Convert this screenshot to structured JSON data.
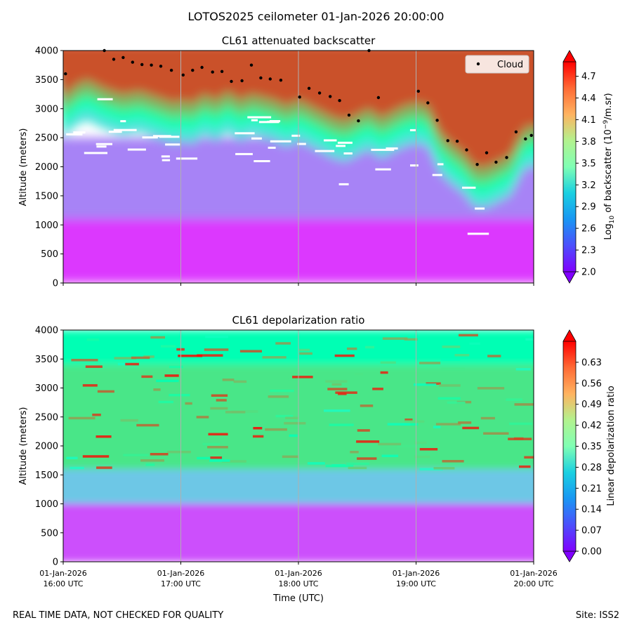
{
  "figure": {
    "suptitle": "LOTOS2025 ceilometer 01-Jan-2026 20:00:00",
    "footer_left": "REAL TIME DATA, NOT CHECKED FOR QUALITY",
    "footer_right": "Site: ISS2",
    "xlabel": "Time (UTC)"
  },
  "chart_data": [
    {
      "type": "heatmap",
      "title": "CL61 attenuated backscatter",
      "ylabel": "Altitude (meters)",
      "xlabel": "Time (UTC)",
      "xlim_hours": [
        16.0,
        20.0
      ],
      "xticks": [
        {
          "hour": 16,
          "date": "01-Jan-2026",
          "time": "16:00 UTC"
        },
        {
          "hour": 17,
          "date": "01-Jan-2026",
          "time": "17:00 UTC"
        },
        {
          "hour": 18,
          "date": "01-Jan-2026",
          "time": "18:00 UTC"
        },
        {
          "hour": 19,
          "date": "01-Jan-2026",
          "time": "19:00 UTC"
        },
        {
          "hour": 20,
          "date": "01-Jan-2026",
          "time": "20:00 UTC"
        }
      ],
      "ylim": [
        0,
        4000
      ],
      "yticks": [
        0,
        500,
        1000,
        1500,
        2000,
        2500,
        3000,
        3500,
        4000
      ],
      "colorbar": {
        "label_prefix": "Log",
        "label_sub": "10",
        "label_mid": " of backscatter (10",
        "label_sup": "−9",
        "label_suffix": "/m.sr)",
        "range": [
          2.0,
          4.9
        ],
        "ticks": [
          "2.0",
          "2.3",
          "2.6",
          "2.9",
          "3.2",
          "3.5",
          "3.8",
          "4.1",
          "4.4",
          "4.7"
        ],
        "colormap": "rainbow"
      },
      "legend": {
        "label": "Cloud",
        "placement": "top-right"
      },
      "cloud_base": {
        "series_name": "Cloud",
        "time_hours": [
          16.02,
          16.35,
          16.43,
          16.51,
          16.59,
          16.67,
          16.75,
          16.83,
          16.92,
          17.02,
          17.1,
          17.18,
          17.27,
          17.35,
          17.43,
          17.52,
          17.6,
          17.68,
          17.76,
          17.85,
          18.01,
          18.09,
          18.18,
          18.27,
          18.35,
          18.43,
          18.51,
          18.6,
          18.68,
          19.02,
          19.1,
          19.18,
          19.27,
          19.35,
          19.43,
          19.52,
          19.6,
          19.68,
          19.77,
          19.85,
          19.93,
          19.98
        ],
        "altitude_m": [
          3600,
          4000,
          3850,
          3880,
          3800,
          3760,
          3750,
          3730,
          3660,
          3580,
          3660,
          3710,
          3630,
          3640,
          3470,
          3480,
          3750,
          3530,
          3510,
          3490,
          3200,
          3350,
          3270,
          3210,
          3140,
          2890,
          2790,
          4000,
          3190,
          3300,
          3100,
          2800,
          2450,
          2440,
          2290,
          2040,
          2240,
          2080,
          2160,
          2600,
          2480,
          2540
        ]
      },
      "layers": [
        {
          "name": "surface-layer",
          "value": 2.2,
          "altitude_m": [
            0,
            1100
          ]
        },
        {
          "name": "boundary-layer",
          "value": 2.5,
          "altitude_m": [
            1100,
            2500
          ]
        },
        {
          "name": "cloud-layer",
          "value": 4.6,
          "top_altitude_m": 4000
        }
      ],
      "cloud_layer_bottom": {
        "time_hours": [
          16.0,
          16.1,
          16.2,
          16.35,
          16.5,
          16.65,
          16.8,
          16.95,
          17.0,
          17.1,
          17.2,
          17.3,
          17.4,
          17.5,
          17.6,
          17.7,
          17.8,
          17.9,
          18.0,
          18.1,
          18.2,
          18.3,
          18.4,
          18.5,
          18.6,
          18.7,
          18.8,
          18.9,
          19.0,
          19.1,
          19.2,
          19.3,
          19.4,
          19.5,
          19.6,
          19.7,
          19.8,
          19.9,
          19.95
        ],
        "altitude_m": [
          3000,
          3200,
          3300,
          3150,
          3050,
          3100,
          3000,
          2900,
          2950,
          2900,
          3050,
          2950,
          3100,
          2950,
          3050,
          3000,
          2950,
          2850,
          2950,
          2850,
          2750,
          2650,
          2600,
          2700,
          2800,
          2650,
          2750,
          2850,
          2900,
          2850,
          2400,
          2200,
          2050,
          1800,
          1800,
          1900,
          2000,
          2400,
          2500
        ]
      }
    },
    {
      "type": "heatmap",
      "title": "CL61 depolarization ratio",
      "ylabel": "Altitude (meters)",
      "xlabel": "Time (UTC)",
      "xlim_hours": [
        16.0,
        20.0
      ],
      "xticks": [
        {
          "hour": 16,
          "date": "01-Jan-2026",
          "time": "16:00 UTC"
        },
        {
          "hour": 17,
          "date": "01-Jan-2026",
          "time": "17:00 UTC"
        },
        {
          "hour": 18,
          "date": "01-Jan-2026",
          "time": "18:00 UTC"
        },
        {
          "hour": 19,
          "date": "01-Jan-2026",
          "time": "19:00 UTC"
        },
        {
          "hour": 20,
          "date": "01-Jan-2026",
          "time": "20:00 UTC"
        }
      ],
      "ylim": [
        0,
        4000
      ],
      "yticks": [
        0,
        500,
        1000,
        1500,
        2000,
        2500,
        3000,
        3500,
        4000
      ],
      "colorbar": {
        "label": "Linear depolarization ratio",
        "range": [
          0.0,
          0.7
        ],
        "ticks": [
          "0.00",
          "0.07",
          "0.14",
          "0.21",
          "0.28",
          "0.35",
          "0.42",
          "0.49",
          "0.56",
          "0.63"
        ],
        "colormap": "rainbow"
      },
      "layers": [
        {
          "name": "surface-layer",
          "value": 0.07,
          "altitude_m": [
            0,
            1000
          ]
        },
        {
          "name": "transition-layer",
          "value": 0.2,
          "altitude_m": [
            1000,
            1600
          ]
        },
        {
          "name": "aerosol-layer",
          "value": 0.45,
          "altitude_m": [
            1600,
            3400
          ]
        },
        {
          "name": "upper-layer",
          "value": 0.35,
          "altitude_m": [
            3400,
            4000
          ]
        }
      ]
    }
  ]
}
